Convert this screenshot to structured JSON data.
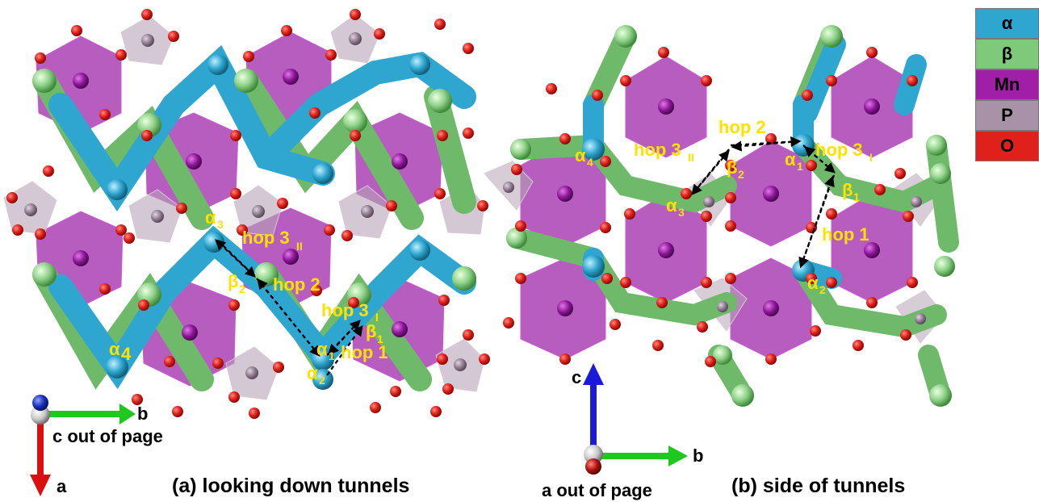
{
  "legend": {
    "items": [
      {
        "label": "α",
        "color": "#2fa6cf"
      },
      {
        "label": "β",
        "color": "#7fc97a"
      },
      {
        "label": "Mn",
        "color": "#a01ea8"
      },
      {
        "label": "P",
        "color": "#a892a8"
      },
      {
        "label": "O",
        "color": "#e0201a"
      }
    ]
  },
  "colors": {
    "alpha": "#2fa6cf",
    "beta": "#7fc97a",
    "mn": "#a01ea8",
    "p": "#a892a8",
    "o": "#e0201a",
    "label": "#ffe100"
  },
  "panel_a": {
    "caption": "(a) looking down tunnels",
    "axis_b": "b",
    "axis_a": "a",
    "out_of_page": "c out of page",
    "site_labels": {
      "alpha3": "α",
      "alpha3_sub": "3",
      "alpha4": "α",
      "alpha4_sub": "4",
      "alpha1": "α",
      "alpha1_sub": "1",
      "alpha2": "α",
      "alpha2_sub": "2",
      "beta1": "β",
      "beta1_sub": "1",
      "beta2": "β",
      "beta2_sub": "2"
    },
    "hop_labels": {
      "hop3II": "hop 3",
      "hop3II_sub": "II",
      "hop2": "hop 2",
      "hop3I": "hop 3",
      "hop3I_sub": "I",
      "hop1": "hop 1"
    }
  },
  "panel_b": {
    "caption": "(b) side of tunnels",
    "axis_c": "c",
    "axis_b": "b",
    "out_of_page": "a out of page",
    "site_labels": {
      "alpha4": "α",
      "alpha4_sub": "4",
      "alpha3": "α",
      "alpha3_sub": "3",
      "alpha1": "α",
      "alpha1_sub": "1",
      "alpha2": "α",
      "alpha2_sub": "2",
      "beta1": "β",
      "beta1_sub": "1",
      "beta2": "β",
      "beta2_sub": "2"
    },
    "hop_labels": {
      "hop2": "hop 2",
      "hop3II": "hop 3",
      "hop3II_sub": "II",
      "hop3I": "hop 3",
      "hop3I_sub": "I",
      "hop1": "hop 1"
    }
  }
}
